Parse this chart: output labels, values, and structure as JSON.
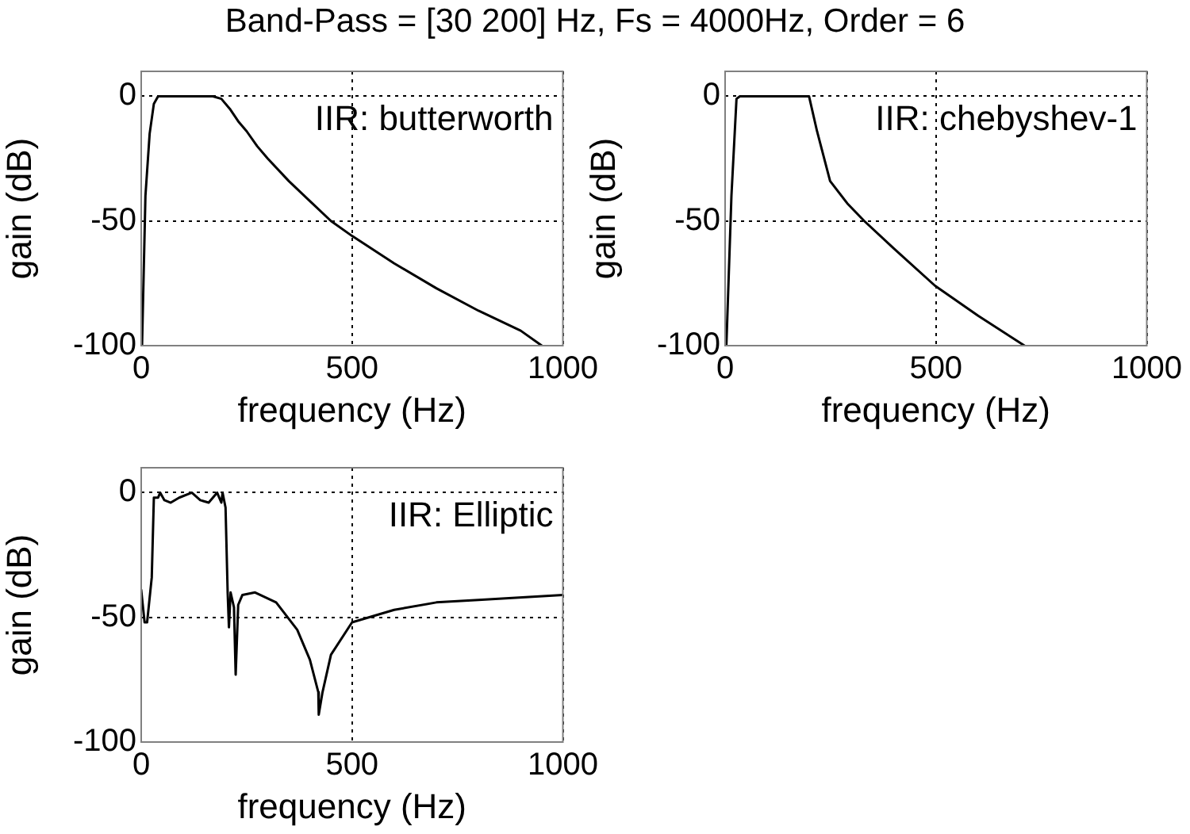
{
  "chart_data": [
    {
      "type": "line",
      "title": "Band-Pass = [30 200] Hz, Fs = 4000Hz, Order = 6",
      "xlabel": "frequency (Hz)",
      "ylabel": "gain (dB)",
      "annotations": [
        "IIR: butterworth"
      ],
      "color": "#000000",
      "x": [
        2,
        10,
        20,
        30,
        40,
        100,
        170,
        190,
        210,
        230,
        250,
        275,
        300,
        350,
        400,
        450,
        500,
        600,
        700,
        800,
        900,
        950
      ],
      "values": [
        -100,
        -40,
        -15,
        -3,
        0,
        0,
        0,
        -1,
        -5,
        -10,
        -14,
        -20,
        -25,
        -34,
        -42,
        -50,
        -56,
        -67,
        -77,
        -86,
        -94,
        -100
      ],
      "xlim": [
        0,
        1000
      ],
      "xticks": [
        0,
        500,
        1000
      ],
      "ylim": [
        -100,
        10
      ],
      "yticks": [
        -100,
        -50,
        0
      ],
      "grid": true,
      "marker": "none"
    },
    {
      "type": "line",
      "xlabel": "frequency (Hz)",
      "ylabel": "gain (dB)",
      "annotations": [
        "IIR: chebyshev-1"
      ],
      "color": "#000000",
      "x": [
        3,
        15,
        27,
        35,
        100,
        150,
        199,
        218,
        249,
        290,
        330,
        400,
        498,
        600,
        710
      ],
      "values": [
        -100,
        -40,
        -1,
        0,
        0,
        0,
        0,
        -14,
        -34,
        -43,
        -50,
        -61,
        -76,
        -88,
        -100
      ],
      "xlim": [
        0,
        1000
      ],
      "xticks": [
        0,
        500,
        1000
      ],
      "ylim": [
        -100,
        10
      ],
      "yticks": [
        -100,
        -50,
        0
      ],
      "grid": true,
      "marker": "none"
    },
    {
      "type": "line",
      "xlabel": "frequency (Hz)",
      "ylabel": "gain (dB)",
      "annotations": [
        "IIR: Elliptic"
      ],
      "color": "#000000",
      "x": [
        0,
        8,
        14,
        25,
        30,
        40,
        45,
        55,
        70,
        90,
        120,
        140,
        160,
        180,
        190,
        193,
        200,
        205,
        208,
        212,
        220,
        224,
        230,
        240,
        270,
        320,
        370,
        400,
        420,
        421,
        430,
        450,
        500,
        600,
        700,
        800,
        1000
      ],
      "values": [
        -39,
        -52,
        -52,
        -34,
        -2,
        -2,
        0,
        -3,
        -4,
        -2,
        0,
        -3,
        -4,
        0,
        -4,
        0,
        -6,
        -40,
        -54,
        -40,
        -46,
        -73,
        -45,
        -41,
        -40,
        -44,
        -55,
        -67,
        -80,
        -89,
        -80,
        -65,
        -52,
        -47,
        -44,
        -43,
        -41
      ],
      "xlim": [
        0,
        1000
      ],
      "xticks": [
        0,
        500,
        1000
      ],
      "ylim": [
        -100,
        10
      ],
      "yticks": [
        -100,
        -50,
        0
      ],
      "grid": true,
      "marker": "none"
    }
  ]
}
